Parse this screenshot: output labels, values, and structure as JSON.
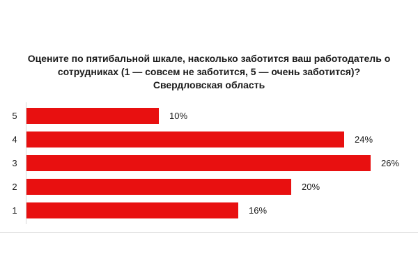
{
  "chart_data": {
    "type": "bar",
    "orientation": "horizontal",
    "title": "Оцените по пятибальной шкале, насколько заботится ваш работодатель о сотрудниках (1 — совсем не заботится, 5 — очень заботится)? Свердловская область",
    "title_lines": [
      "Оцените по пятибальной шкале, насколько заботится ваш работодатель о",
      "сотрудниках (1 — совсем не заботится, 5 — очень заботится)?",
      "Свердловская область"
    ],
    "categories": [
      "5",
      "4",
      "3",
      "2",
      "1"
    ],
    "values": [
      10,
      24,
      26,
      20,
      16
    ],
    "value_labels": [
      "10%",
      "24%",
      "26%",
      "20%",
      "16%"
    ],
    "xlabel": "",
    "ylabel": "",
    "xlim": [
      0,
      26
    ],
    "grid": false,
    "legend": "none",
    "bar_color": "#E81010",
    "axis_color": "#D9D9D9",
    "text_color": "#1A1A1A"
  }
}
